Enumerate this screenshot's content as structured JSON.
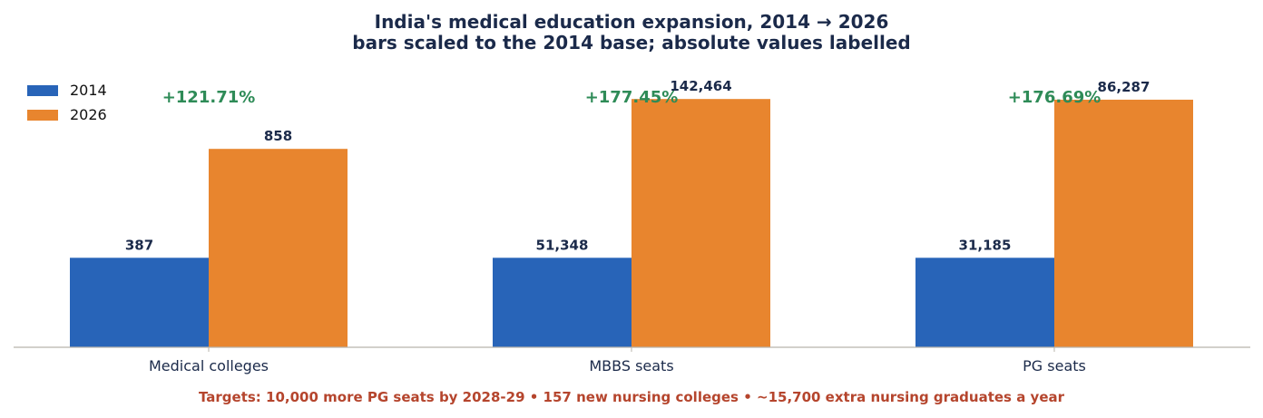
{
  "chart_data": {
    "type": "bar",
    "title": "India's medical education expansion, 2014 → 2026",
    "subtitle": "bars scaled to the 2014 base; absolute values labelled",
    "categories": [
      "Medical colleges",
      "MBBS seats",
      "PG seats"
    ],
    "series": [
      {
        "name": "2014",
        "values": [
          387,
          51348,
          31185
        ],
        "value_labels": [
          "387",
          "51,348",
          "31,185"
        ],
        "relative": [
          1,
          1,
          1
        ]
      },
      {
        "name": "2026",
        "values": [
          858,
          142464,
          86287
        ],
        "value_labels": [
          "858",
          "142,464",
          "86,287"
        ],
        "relative": [
          2.2171,
          2.7745,
          2.7669
        ]
      }
    ],
    "growth_labels": [
      "+121.71%",
      "+177.45%",
      "+176.69%"
    ],
    "ylim_relative": [
      0,
      3.05
    ],
    "grid": false,
    "legend_position": "top-left",
    "footnote": "Targets: 10,000 more PG seats by 2028-29  •  157 new nursing colleges  •  ~15,700 extra nursing graduates a year",
    "colors": {
      "series_2014": "#2864b8",
      "series_2026": "#e8852e",
      "title": "#1b2a4a",
      "growth": "#2e8b57",
      "footnote": "#b5452d",
      "axis": "#b8b4ac",
      "value_label": "#1b2a4a"
    }
  }
}
